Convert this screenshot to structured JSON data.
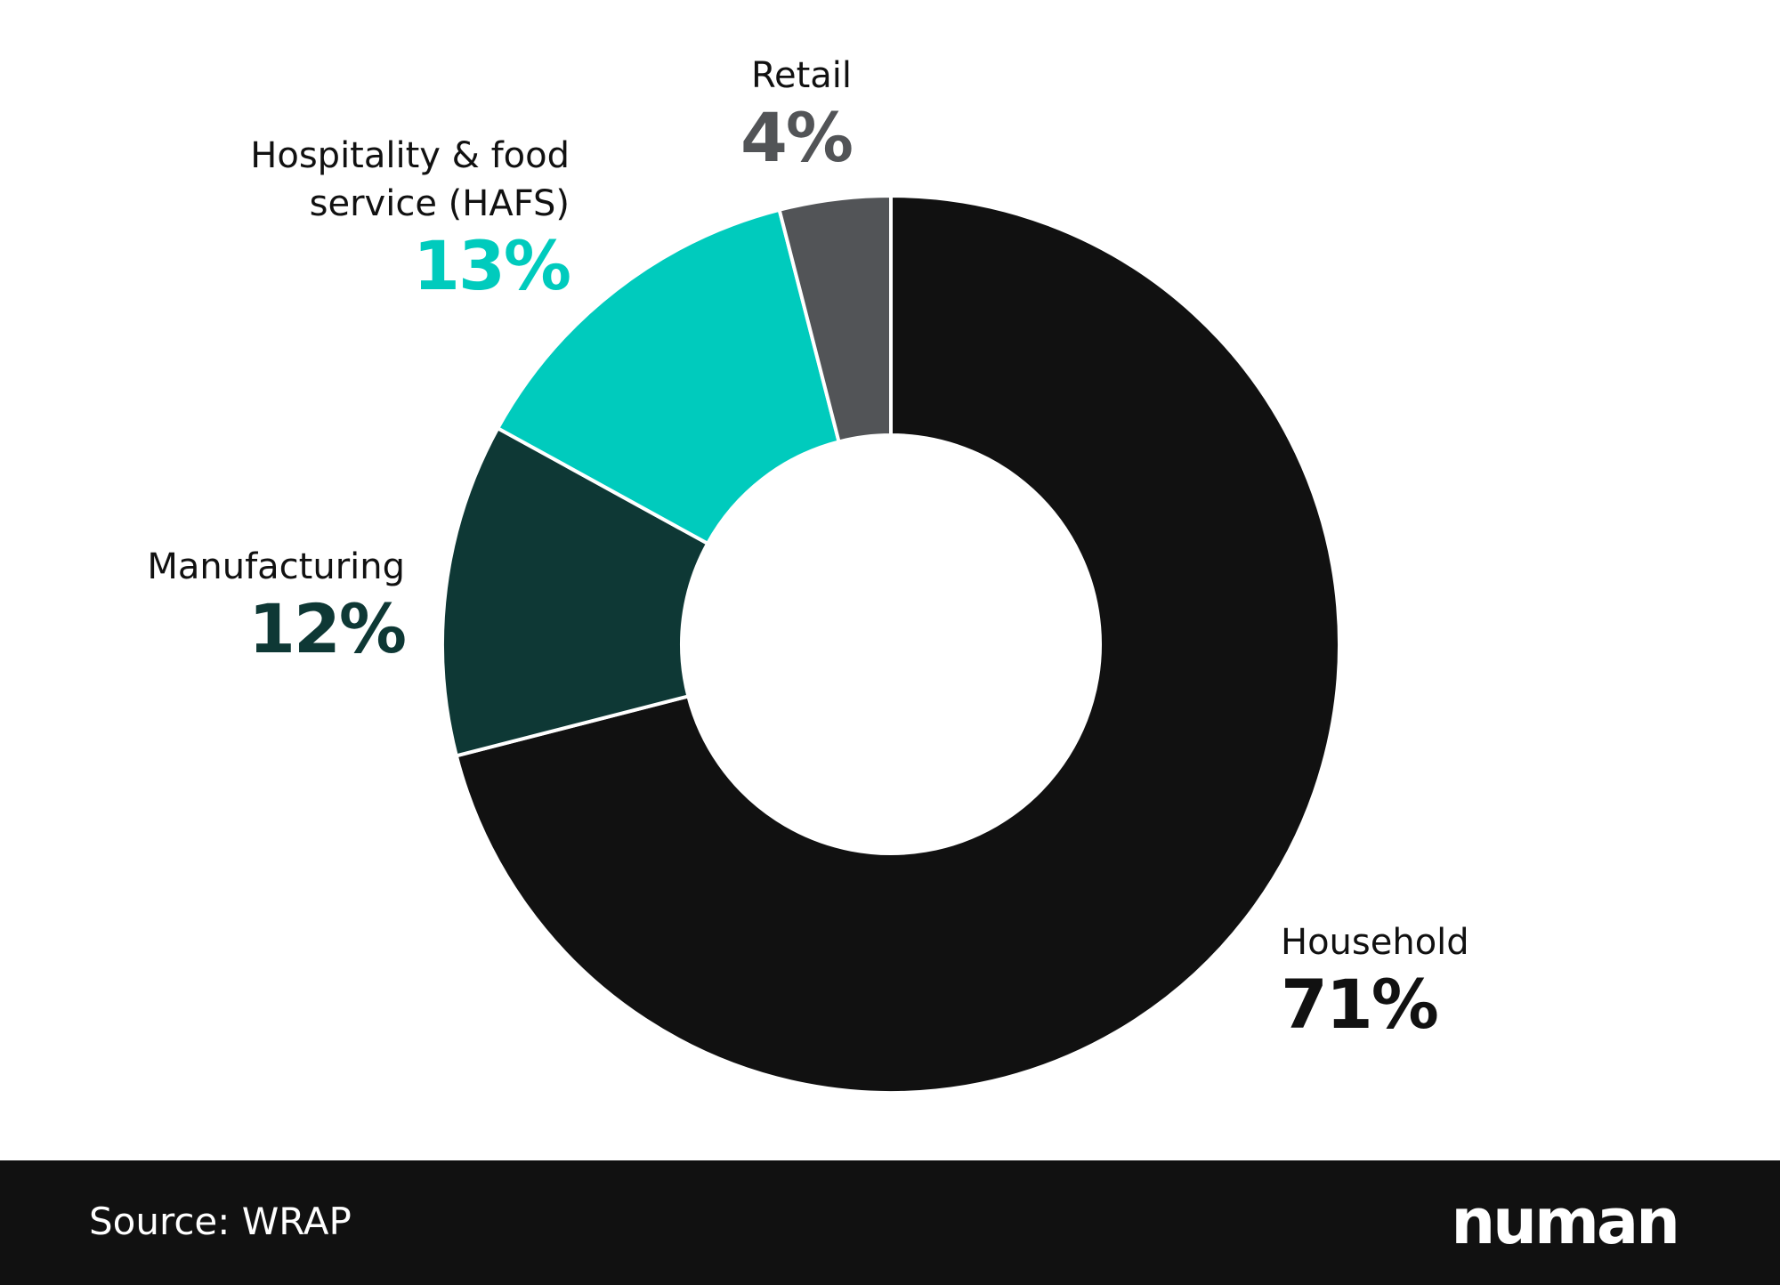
{
  "chart_data": {
    "type": "pie",
    "categories": [
      "Household",
      "Manufacturing",
      "Hospitality & food service (HAFS)",
      "Retail"
    ],
    "values": [
      71,
      12,
      13,
      4
    ],
    "value_labels": [
      "71%",
      "12%",
      "13%",
      "4%"
    ],
    "colors": [
      "#111111",
      "#0e3835",
      "#00cbbd",
      "#525457"
    ],
    "donut": true
  },
  "footer": {
    "source": "Source: WRAP",
    "logo": "numan"
  }
}
